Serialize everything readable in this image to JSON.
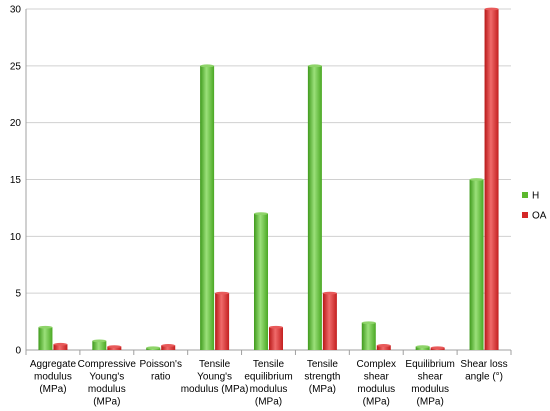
{
  "chart_data": {
    "type": "bar",
    "title": "",
    "xlabel": "",
    "ylabel": "",
    "ylim": [
      0,
      30
    ],
    "yticks": [
      0,
      5,
      10,
      15,
      20,
      25,
      30
    ],
    "grid": true,
    "legend_position": "right",
    "categories": [
      [
        "Aggregate",
        "modulus",
        "(MPa)"
      ],
      [
        "Compressive",
        "Young's",
        "modulus",
        "(MPa)"
      ],
      [
        "Poisson's",
        "ratio"
      ],
      [
        "Tensile",
        "Young's",
        "modulus (MPa)"
      ],
      [
        "Tensile",
        "equilibrium",
        "modulus",
        "(MPa)"
      ],
      [
        "Tensile",
        "strength",
        "(MPa)"
      ],
      [
        "Complex",
        "shear",
        "modulus",
        "(MPa)"
      ],
      [
        "Equilibrium",
        "shear",
        "modulus",
        "(MPa)"
      ],
      [
        "Shear loss",
        "angle (°)"
      ]
    ],
    "series": [
      {
        "name": "H",
        "color": "#5cb82e",
        "values": [
          2,
          0.8,
          0.2,
          25,
          12,
          25,
          2.4,
          0.3,
          15
        ]
      },
      {
        "name": "OA",
        "color": "#d42828",
        "values": [
          0.5,
          0.3,
          0.4,
          5,
          2,
          5,
          0.4,
          0.2,
          30
        ]
      }
    ]
  }
}
